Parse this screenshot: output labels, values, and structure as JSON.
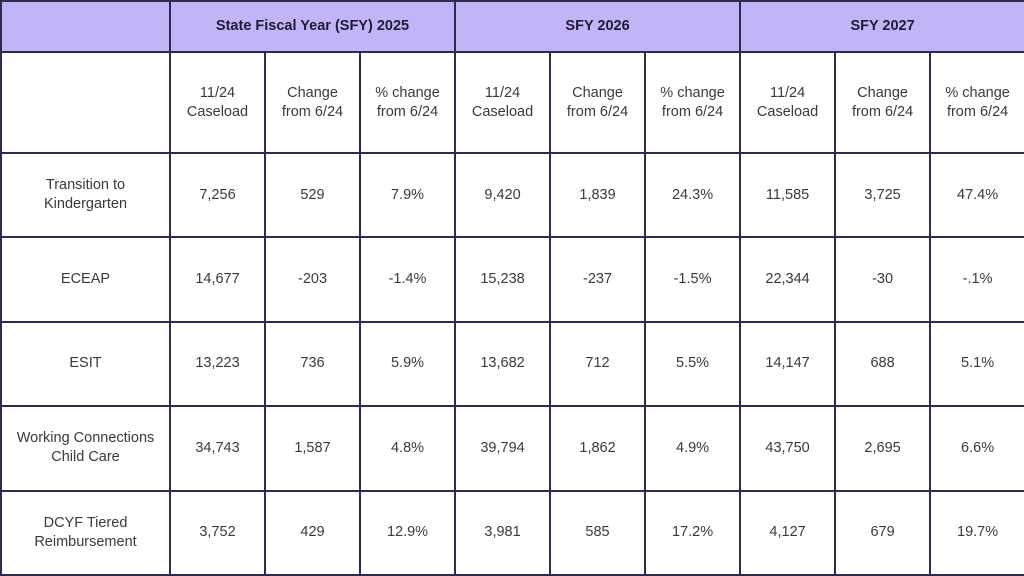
{
  "table": {
    "groups": [
      {
        "label": "State Fiscal Year (SFY) 2025"
      },
      {
        "label": "SFY 2026"
      },
      {
        "label": "SFY 2027"
      }
    ],
    "subheaders": [
      {
        "l1": "11/24",
        "l2": "Caseload"
      },
      {
        "l1": "Change",
        "l2": "from 6/24"
      },
      {
        "l1": "% change",
        "l2": "from 6/24"
      },
      {
        "l1": "11/24",
        "l2": "Caseload"
      },
      {
        "l1": "Change",
        "l2": "from 6/24"
      },
      {
        "l1": "% change",
        "l2": "from 6/24"
      },
      {
        "l1": "11/24",
        "l2": "Caseload"
      },
      {
        "l1": "Change",
        "l2": "from 6/24"
      },
      {
        "l1": "% change",
        "l2": "from 6/24"
      }
    ],
    "rows": [
      {
        "l1": "Transition to",
        "l2": "Kindergarten",
        "cells": [
          "7,256",
          "529",
          "7.9%",
          "9,420",
          "1,839",
          "24.3%",
          "11,585",
          "3,725",
          "47.4%"
        ]
      },
      {
        "l1": "ECEAP",
        "l2": "",
        "cells": [
          "14,677",
          "-203",
          "-1.4%",
          "15,238",
          "-237",
          "-1.5%",
          "22,344",
          "-30",
          "-.1%"
        ]
      },
      {
        "l1": "ESIT",
        "l2": "",
        "cells": [
          "13,223",
          "736",
          "5.9%",
          "13,682",
          "712",
          "5.5%",
          "14,147",
          "688",
          "5.1%"
        ]
      },
      {
        "l1": "Working Connections",
        "l2": "Child Care",
        "cells": [
          "34,743",
          "1,587",
          "4.8%",
          "39,794",
          "1,862",
          "4.9%",
          "43,750",
          "2,695",
          "6.6%"
        ]
      },
      {
        "l1": "DCYF Tiered",
        "l2": "Reimbursement",
        "cells": [
          "3,752",
          "429",
          "12.9%",
          "3,981",
          "585",
          "17.2%",
          "4,127",
          "679",
          "19.7%"
        ]
      }
    ]
  }
}
